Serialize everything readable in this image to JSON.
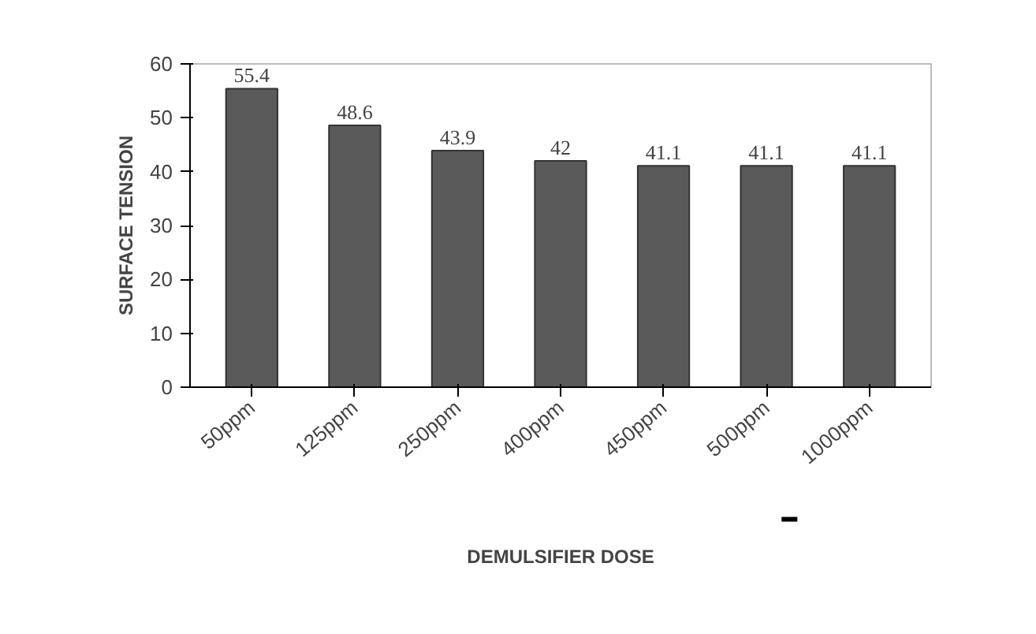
{
  "chart_data": {
    "type": "bar",
    "xlabel": "DEMULSIFIER DOSE",
    "ylabel": "SURFACE TENSION",
    "categories": [
      "50ppm",
      "125ppm",
      "250ppm",
      "400ppm",
      "450ppm",
      "500ppm",
      "1000ppm"
    ],
    "values": [
      55.4,
      48.6,
      43.9,
      42,
      41.1,
      41.1,
      41.1
    ],
    "color": "#5a5a5a",
    "ylim": [
      0,
      60
    ],
    "yticks": [
      0,
      10,
      20,
      30,
      40,
      50,
      60
    ],
    "data_labels": true,
    "grid": false
  }
}
